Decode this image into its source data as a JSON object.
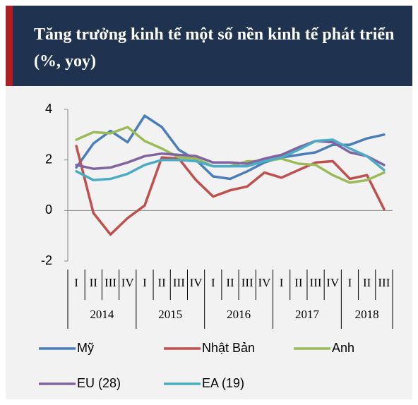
{
  "chart_data": {
    "type": "line",
    "title": "Tăng trưởng kinh tế một số nền kinh tế phát triển (%, yoy)",
    "categories": [
      "I",
      "II",
      "III",
      "IV",
      "I",
      "II",
      "III",
      "IV",
      "I",
      "II",
      "III",
      "IV",
      "I",
      "II",
      "III",
      "IV",
      "I",
      "II",
      "III"
    ],
    "groups": [
      "2014",
      "2015",
      "2016",
      "2017",
      "2018"
    ],
    "series": [
      {
        "name": "Mỹ",
        "color": "#4a7ebb",
        "values": [
          1.7,
          2.65,
          3.15,
          2.7,
          3.75,
          3.3,
          2.4,
          2.0,
          1.35,
          1.25,
          1.55,
          1.9,
          2.1,
          2.2,
          2.3,
          2.6,
          2.6,
          2.85,
          3.0
        ]
      },
      {
        "name": "Nhật Bản",
        "color": "#c0504d",
        "values": [
          2.55,
          -0.1,
          -0.95,
          -0.3,
          0.2,
          2.1,
          2.05,
          1.2,
          0.55,
          0.8,
          0.95,
          1.5,
          1.3,
          1.6,
          1.9,
          1.95,
          1.25,
          1.4,
          0.05
        ]
      },
      {
        "name": "Anh",
        "color": "#9bbb59",
        "values": [
          2.8,
          3.1,
          3.05,
          3.3,
          2.75,
          2.45,
          2.1,
          2.05,
          1.75,
          1.75,
          1.95,
          1.95,
          2.05,
          1.85,
          1.8,
          1.4,
          1.1,
          1.2,
          1.5
        ]
      },
      {
        "name": "EU (28)",
        "color": "#8064a2",
        "values": [
          1.8,
          1.65,
          1.7,
          1.9,
          2.15,
          2.25,
          2.2,
          2.15,
          1.9,
          1.9,
          1.85,
          2.05,
          2.2,
          2.5,
          2.75,
          2.7,
          2.3,
          2.15,
          1.8
        ]
      },
      {
        "name": "EA (19)",
        "color": "#4bacc6",
        "values": [
          1.55,
          1.2,
          1.25,
          1.45,
          1.8,
          2.0,
          2.0,
          1.95,
          1.75,
          1.75,
          1.75,
          1.95,
          2.1,
          2.4,
          2.75,
          2.8,
          2.45,
          2.15,
          1.6
        ]
      }
    ],
    "ylim": [
      -2,
      4
    ],
    "yticks": [
      -2,
      0,
      2,
      4
    ],
    "grid": false
  }
}
